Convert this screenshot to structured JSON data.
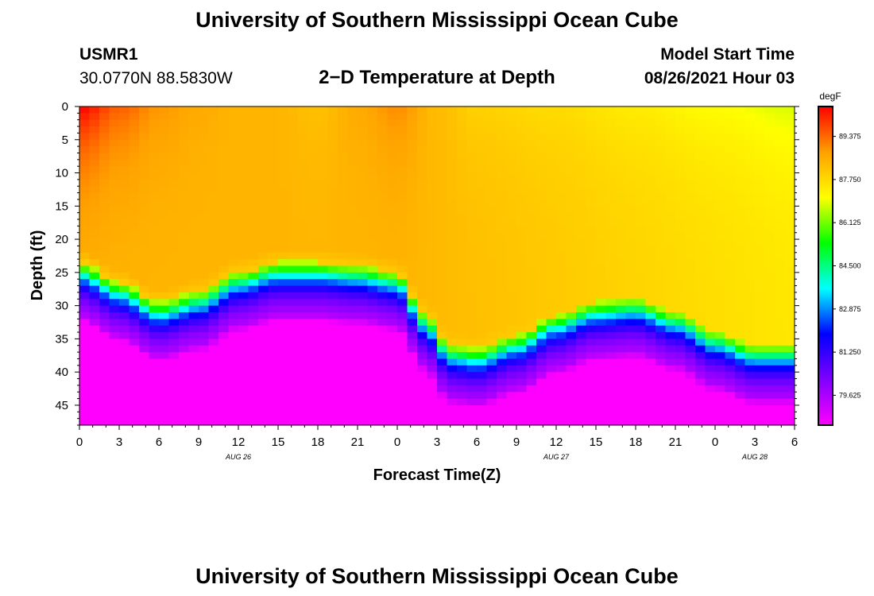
{
  "header": {
    "title_top": "University of Southern Mississippi Ocean Cube",
    "station_id": "USMR1",
    "coordinates": "30.0770N  88.5830W",
    "plot_title": "2−D Temperature at Depth",
    "model_start_label": "Model Start Time",
    "model_start_value": "08/26/2021 Hour 03",
    "title_bottom": "University of Southern Mississippi Ocean Cube"
  },
  "chart_data": {
    "type": "heatmap",
    "title": "2-D Temperature at Depth",
    "xlabel": "Forecast Time(Z)",
    "ylabel": "Depth (ft)",
    "x_range": [
      0,
      54
    ],
    "y_range": [
      0,
      48
    ],
    "x_ticks": [
      0,
      3,
      6,
      9,
      12,
      15,
      18,
      21,
      24,
      27,
      30,
      33,
      36,
      39,
      42,
      45,
      48,
      51,
      54
    ],
    "x_tick_labels": [
      "0",
      "3",
      "6",
      "9",
      "12",
      "15",
      "18",
      "21",
      "0",
      "3",
      "6",
      "9",
      "12",
      "15",
      "18",
      "21",
      "0",
      "3",
      "6"
    ],
    "y_ticks": [
      0,
      5,
      10,
      15,
      20,
      25,
      30,
      35,
      40,
      45
    ],
    "y_tick_labels": [
      "0",
      "5",
      "10",
      "15",
      "20",
      "25",
      "30",
      "35",
      "40",
      "45"
    ],
    "date_labels": [
      {
        "x": 12,
        "text": "AUG 26"
      },
      {
        "x": 36,
        "text": "AUG 27"
      },
      {
        "x": 51,
        "text": "AUG 28"
      }
    ],
    "colorbar": {
      "unit": "degF",
      "min": 78.5,
      "max": 90.5,
      "ticks": [
        79.625,
        81.25,
        82.875,
        84.5,
        86.125,
        87.75,
        89.375
      ],
      "tick_labels": [
        "79.625",
        "81.250",
        "82.875",
        "84.500",
        "86.125",
        "87.750",
        "89.375"
      ],
      "colors": [
        "#ff00ff",
        "#8000ff",
        "#0000ff",
        "#00ffff",
        "#00ff00",
        "#ffff00",
        "#ffa000",
        "#ff0000"
      ]
    },
    "thermocline_depth_ft": [
      {
        "hour": 0,
        "depth": 23.5
      },
      {
        "hour": 3,
        "depth": 26.5
      },
      {
        "hour": 6,
        "depth": 29.5
      },
      {
        "hour": 9,
        "depth": 28
      },
      {
        "hour": 12,
        "depth": 25
      },
      {
        "hour": 15,
        "depth": 23.5
      },
      {
        "hour": 18,
        "depth": 23.5
      },
      {
        "hour": 21,
        "depth": 24
      },
      {
        "hour": 24,
        "depth": 25
      },
      {
        "hour": 26,
        "depth": 31
      },
      {
        "hour": 28,
        "depth": 36
      },
      {
        "hour": 30,
        "depth": 36.5
      },
      {
        "hour": 33,
        "depth": 34.5
      },
      {
        "hour": 36,
        "depth": 31.5
      },
      {
        "hour": 39,
        "depth": 29.5
      },
      {
        "hour": 42,
        "depth": 29
      },
      {
        "hour": 45,
        "depth": 31
      },
      {
        "hour": 48,
        "depth": 34
      },
      {
        "hour": 51,
        "depth": 36
      },
      {
        "hour": 54,
        "depth": 36
      }
    ],
    "surface_temp_degF": [
      {
        "hour": 0,
        "temp": 90.5
      },
      {
        "hour": 3,
        "temp": 89.5
      },
      {
        "hour": 6,
        "temp": 88.9
      },
      {
        "hour": 9,
        "temp": 88.6
      },
      {
        "hour": 12,
        "temp": 88.4
      },
      {
        "hour": 15,
        "temp": 88.4
      },
      {
        "hour": 18,
        "temp": 88.2
      },
      {
        "hour": 21,
        "temp": 88.6
      },
      {
        "hour": 24,
        "temp": 89.0
      },
      {
        "hour": 27,
        "temp": 88.3
      },
      {
        "hour": 30,
        "temp": 87.9
      },
      {
        "hour": 36,
        "temp": 87.7
      },
      {
        "hour": 42,
        "temp": 87.4
      },
      {
        "hour": 48,
        "temp": 87.1
      },
      {
        "hour": 54,
        "temp": 86.8
      }
    ],
    "bottom_temp_degF": 78.8,
    "mid_layer_temp_degF": 88.4
  }
}
